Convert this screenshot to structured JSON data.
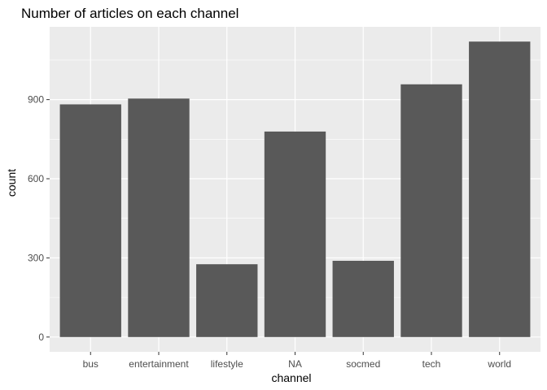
{
  "chart_data": {
    "type": "bar",
    "title": "Number of articles on each channel",
    "xlabel": "channel",
    "ylabel": "count",
    "categories": [
      "bus",
      "entertainment",
      "lifestyle",
      "NA",
      "socmed",
      "tech",
      "world"
    ],
    "values": [
      882,
      904,
      276,
      779,
      289,
      958,
      1120
    ],
    "ylim": [
      -56,
      1176
    ],
    "yticks": [
      0,
      300,
      600,
      900
    ],
    "grid": true,
    "colors": {
      "panel": "#ebebeb",
      "grid_major": "#ffffff",
      "bar": "#595959",
      "tick_text": "#4d4d4d",
      "text": "#000000"
    }
  }
}
